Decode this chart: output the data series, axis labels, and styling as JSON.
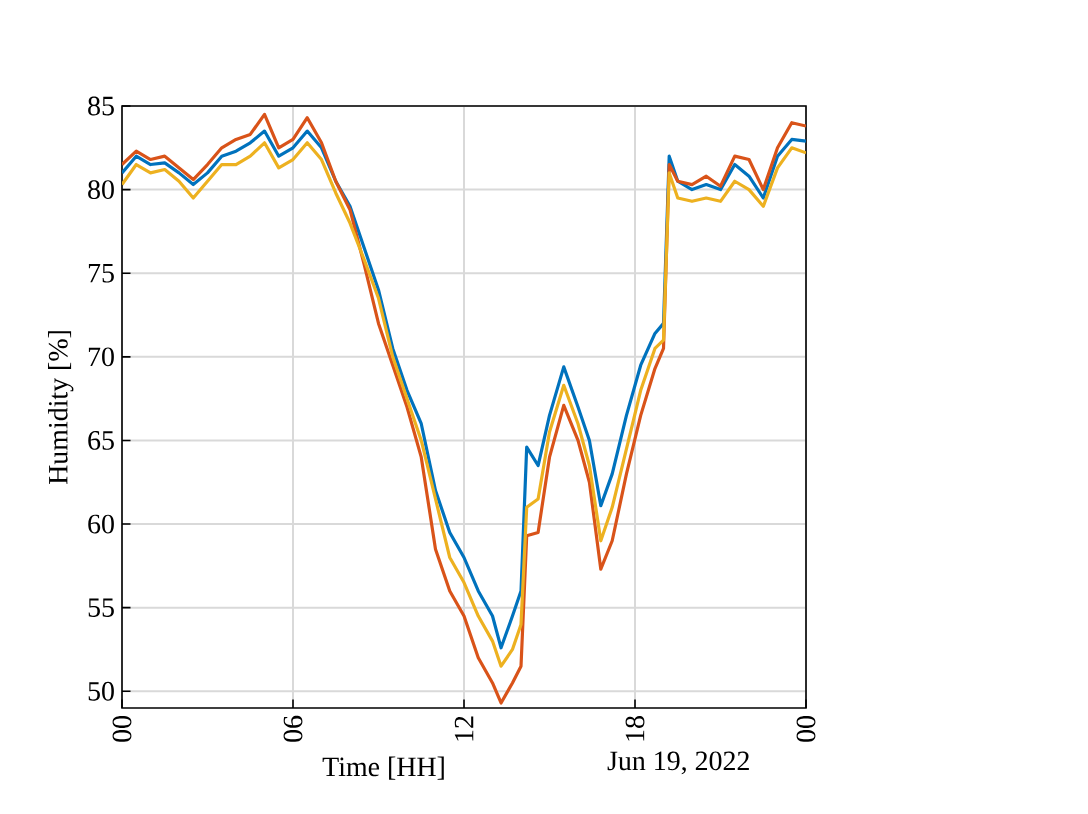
{
  "chart_data": {
    "type": "line",
    "xlabel": "Time [HH]",
    "ylabel": "Humidity [%]",
    "annotations": [
      "Jun 19, 2022"
    ],
    "x": [
      0,
      0.5,
      1,
      1.5,
      2,
      2.5,
      3,
      3.5,
      4,
      4.5,
      5,
      5.5,
      6,
      6.5,
      7,
      7.5,
      8,
      8.5,
      9,
      9.5,
      10,
      10.5,
      11,
      11.5,
      12,
      12.5,
      13,
      13.3,
      13.7,
      14,
      14.2,
      14.6,
      15,
      15.5,
      16,
      16.4,
      16.8,
      17.2,
      17.7,
      18.2,
      18.7,
      19,
      19.2,
      19.5,
      20,
      20.5,
      21,
      21.5,
      22,
      22.5,
      23,
      23.5,
      24
    ],
    "series": [
      {
        "color": "#0072bd",
        "values": [
          81,
          82,
          81.5,
          81.6,
          81,
          80.3,
          81,
          82,
          82.3,
          82.8,
          83.5,
          82,
          82.5,
          83.5,
          82.5,
          80.5,
          79,
          76.5,
          74,
          70.5,
          68,
          66,
          62,
          59.5,
          58,
          56,
          54.5,
          52.6,
          54.5,
          56,
          64.6,
          63.5,
          66.5,
          69.4,
          67,
          65,
          61.1,
          63,
          66.5,
          69.5,
          71.4,
          72,
          82,
          80.5,
          80,
          80.3,
          80,
          81.5,
          80.8,
          79.5,
          82,
          83,
          82.9
        ]
      },
      {
        "color": "#d95319",
        "values": [
          81.5,
          82.3,
          81.8,
          82,
          81.3,
          80.6,
          81.5,
          82.5,
          83,
          83.3,
          84.5,
          82.5,
          83,
          84.3,
          82.8,
          80.5,
          78.8,
          75.5,
          72,
          69.5,
          67,
          64,
          58.5,
          56,
          54.5,
          52,
          50.5,
          49.3,
          50.5,
          51.5,
          59.3,
          59.5,
          64,
          67.1,
          65,
          62.5,
          57.3,
          59,
          63,
          66.5,
          69.3,
          70.5,
          81.5,
          80.5,
          80.3,
          80.8,
          80.2,
          82,
          81.8,
          80,
          82.5,
          84,
          83.8
        ]
      },
      {
        "color": "#edb120",
        "values": [
          80.3,
          81.5,
          81,
          81.2,
          80.5,
          79.5,
          80.5,
          81.5,
          81.5,
          82,
          82.8,
          81.3,
          81.8,
          82.8,
          81.8,
          79.8,
          78,
          75.8,
          73.5,
          70,
          67.5,
          65,
          61.5,
          58,
          56.5,
          54.5,
          53,
          51.5,
          52.5,
          54,
          61,
          61.5,
          65.5,
          68.3,
          66,
          63.5,
          59,
          61,
          64.5,
          68,
          70.5,
          71,
          81,
          79.5,
          79.3,
          79.5,
          79.3,
          80.5,
          80,
          79,
          81.3,
          82.5,
          82.2
        ]
      }
    ],
    "xlim": [
      0,
      24
    ],
    "ylim": [
      49,
      85
    ],
    "xticks": [
      {
        "value": 0,
        "label": "00"
      },
      {
        "value": 6,
        "label": "06"
      },
      {
        "value": 12,
        "label": "12"
      },
      {
        "value": 18,
        "label": "18"
      },
      {
        "value": 24,
        "label": "00"
      }
    ],
    "yticks": [
      50,
      55,
      60,
      65,
      70,
      75,
      80,
      85
    ],
    "grid": true,
    "marker": "none",
    "line_style": "solid"
  }
}
